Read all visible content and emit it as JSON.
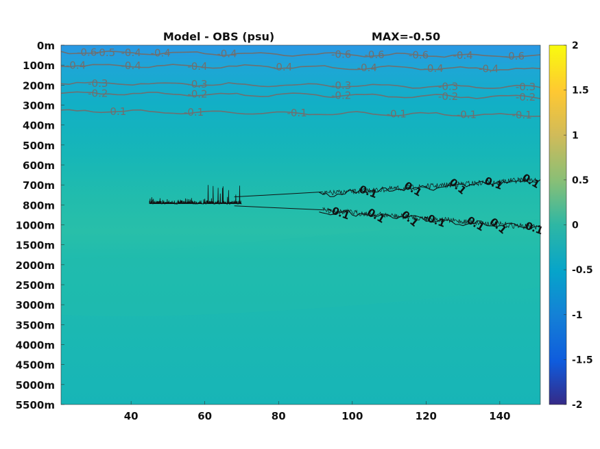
{
  "chart_data": {
    "type": "heatmap",
    "title_left": "Model - OBS (psu)",
    "title_right": "MAX=-0.50",
    "x_ticks": [
      40,
      60,
      80,
      100,
      120,
      140
    ],
    "xlim": [
      21,
      151
    ],
    "y_ticks": [
      "0m",
      "100m",
      "200m",
      "300m",
      "400m",
      "500m",
      "600m",
      "700m",
      "800m",
      "1000m",
      "1500m",
      "2000m",
      "2500m",
      "3000m",
      "3500m",
      "4000m",
      "4500m",
      "5000m",
      "5500m"
    ],
    "colorbar": {
      "ticks": [
        2,
        1.5,
        1,
        0.5,
        0,
        -0.5,
        -1,
        -1.5,
        -2
      ],
      "range": [
        -2,
        2
      ],
      "colormap": "parula"
    },
    "contours": [
      {
        "level": -0.4,
        "color": "#6f6f6f",
        "y_index": 0.35,
        "labels": [
          {
            "x": 28,
            "text": "-0.6"
          },
          {
            "x": 33,
            "text": "-0.5"
          },
          {
            "x": 40,
            "text": "-0.4"
          },
          {
            "x": 48,
            "text": "-0.4"
          },
          {
            "x": 66,
            "text": "-0.4"
          },
          {
            "x": 97,
            "text": "-0.6"
          },
          {
            "x": 106,
            "text": "-0.6"
          },
          {
            "x": 118,
            "text": "-0.6"
          },
          {
            "x": 130,
            "text": "-0.4"
          },
          {
            "x": 144,
            "text": "-0.6"
          }
        ]
      },
      {
        "level": -0.4,
        "color": "#6f6f6f",
        "y_index": 1.0,
        "labels": [
          {
            "x": 25,
            "text": "-0.4"
          },
          {
            "x": 40,
            "text": "-0.4"
          },
          {
            "x": 58,
            "text": "-0.4"
          },
          {
            "x": 81,
            "text": "-0.4"
          },
          {
            "x": 104,
            "text": "-0.4"
          },
          {
            "x": 122,
            "text": "-0.4"
          },
          {
            "x": 137,
            "text": "-0.4"
          }
        ]
      },
      {
        "level": -0.3,
        "color": "#6f6f6f",
        "y_index": 1.9,
        "labels": [
          {
            "x": 31,
            "text": "-0.3"
          },
          {
            "x": 58,
            "text": "-0.3"
          },
          {
            "x": 97,
            "text": "-0.3"
          },
          {
            "x": 126,
            "text": "-0.3"
          },
          {
            "x": 147,
            "text": "-0.3"
          }
        ]
      },
      {
        "level": -0.2,
        "color": "#6f6f6f",
        "y_index": 2.4,
        "labels": [
          {
            "x": 31,
            "text": "-0.2"
          },
          {
            "x": 58,
            "text": "-0.2"
          },
          {
            "x": 97,
            "text": "-0.2"
          },
          {
            "x": 126,
            "text": "-0.2"
          },
          {
            "x": 147,
            "text": "-0.2"
          }
        ]
      },
      {
        "level": -0.1,
        "color": "#6f6f6f",
        "y_index": 3.3,
        "labels": [
          {
            "x": 36,
            "text": "-0.1"
          },
          {
            "x": 57,
            "text": "-0.1"
          },
          {
            "x": 85,
            "text": "-0.1"
          },
          {
            "x": 112,
            "text": "-0.1"
          },
          {
            "x": 131,
            "text": "-0.1"
          },
          {
            "x": 146,
            "text": "-0.1"
          }
        ]
      },
      {
        "level": 0.1,
        "color": "#111111",
        "y_index": 7.5,
        "labels": [
          {
            "x": 104,
            "text": "0.1"
          },
          {
            "x": 116,
            "text": "0.1"
          },
          {
            "x": 128,
            "text": "0.1"
          },
          {
            "x": 138,
            "text": "0.1"
          },
          {
            "x": 148,
            "text": "0.1"
          }
        ]
      },
      {
        "level": -0.1,
        "color": "#111111",
        "y_index": 8.3,
        "labels": [
          {
            "x": 96,
            "text": "-0.1"
          },
          {
            "x": 106,
            "text": "0.1"
          },
          {
            "x": 115,
            "text": "0.1"
          },
          {
            "x": 122,
            "text": "-0.1"
          },
          {
            "x": 133,
            "text": "0.1"
          },
          {
            "x": 139,
            "text": "0.1"
          },
          {
            "x": 149,
            "text": "0.1"
          }
        ]
      }
    ]
  },
  "colors": {
    "top_band": "#2f9de0",
    "upper_mid": "#1aa6d2",
    "mid": "#14b0c4",
    "lower": "#18b8b2",
    "bright_band": "#26bdaa",
    "deep": "#16b5b7"
  }
}
